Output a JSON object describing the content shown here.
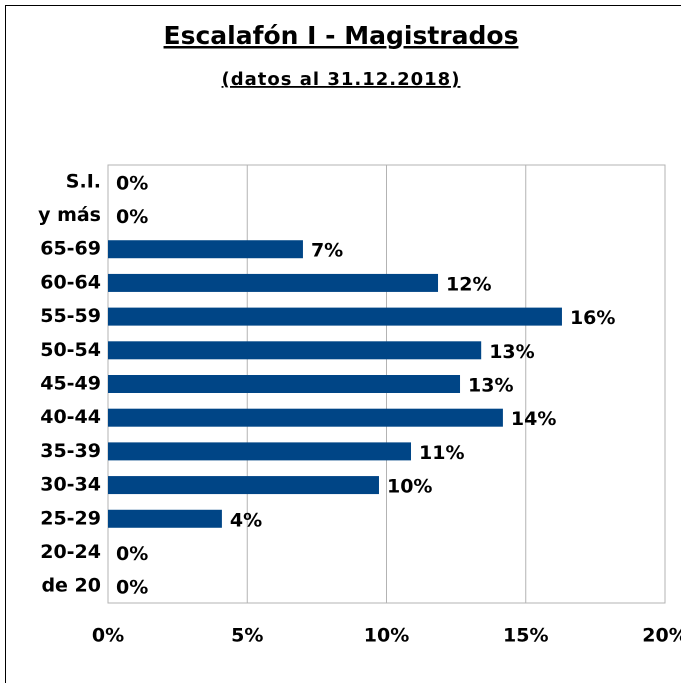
{
  "chart_data": {
    "type": "bar",
    "orientation": "horizontal",
    "title": "Escalafón I - Magistrados",
    "subtitle": "(datos al 31.12.2018)",
    "categories": [
      "S.I.",
      "y más",
      "65-69",
      "60-64",
      "55-59",
      "50-54",
      "45-49",
      "40-44",
      "35-39",
      "30-34",
      "25-29",
      "20-24",
      "de 20"
    ],
    "values": [
      0,
      0,
      7.0,
      11.85,
      16.3,
      13.4,
      12.64,
      14.18,
      10.88,
      9.73,
      4.09,
      0,
      0
    ],
    "value_labels": [
      "0%",
      "0%",
      "7%",
      "12%",
      "16%",
      "13%",
      "13%",
      "14%",
      "11%",
      "10%",
      "4%",
      "0%",
      "0%"
    ],
    "color": "#004586",
    "xlim": [
      0,
      20
    ],
    "xticks": [
      {
        "value": 0,
        "label": "0%"
      },
      {
        "value": 5,
        "label": "5%"
      },
      {
        "value": 10,
        "label": "10%"
      },
      {
        "value": 15,
        "label": "15%"
      },
      {
        "value": 20,
        "label": "20%"
      }
    ],
    "grid": true
  }
}
